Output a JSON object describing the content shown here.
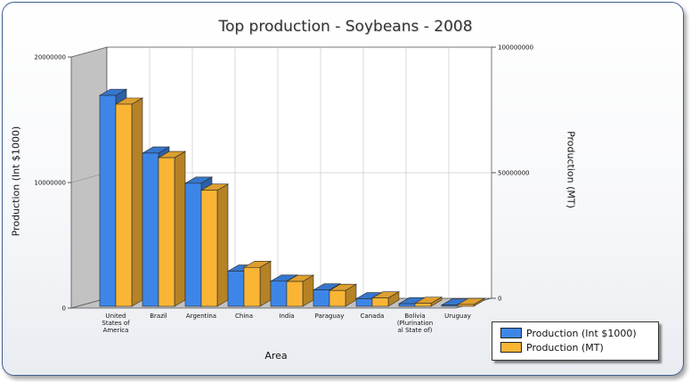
{
  "chart_data": {
    "type": "bar",
    "title": "Top production - Soybeans - 2008",
    "xlabel": "Area",
    "ylabel": "Production (Int $1000)",
    "ylabel_right": "Production (MT)",
    "categories": [
      "United States of America",
      "Brazil",
      "Argentina",
      "China",
      "India",
      "Paraguay",
      "Canada",
      "Bolivia (Plurinational State of)",
      "Uruguay"
    ],
    "category_lines": [
      [
        "United",
        "States of",
        "America"
      ],
      [
        "Brazil"
      ],
      [
        "Argentina"
      ],
      [
        "China"
      ],
      [
        "India"
      ],
      [
        "Paraguay"
      ],
      [
        "Canada"
      ],
      [
        "Bolivia",
        "(Plurination",
        "al State of)"
      ],
      [
        "Uruguay"
      ]
    ],
    "series": [
      {
        "name": "Production (Int $1000)",
        "axis": "left",
        "color": "#3d86e8",
        "values": [
          16800000,
          12200000,
          9800000,
          2800000,
          2000000,
          1300000,
          600000,
          200000,
          100000
        ]
      },
      {
        "name": "Production (MT)",
        "axis": "right",
        "color": "#fbb535",
        "values": [
          80500000,
          59200000,
          46200000,
          15500000,
          9900000,
          6300000,
          3300000,
          1200000,
          700000
        ]
      }
    ],
    "ylim": [
      0,
      20000000
    ],
    "ylim_right": [
      0,
      100000000
    ],
    "yticks": [
      "0",
      "10000000",
      "20000000"
    ],
    "yticks_right": [
      "0",
      "50000000",
      "100000000"
    ],
    "grid": true,
    "legend_position": "bottom-right",
    "style": "3d"
  }
}
